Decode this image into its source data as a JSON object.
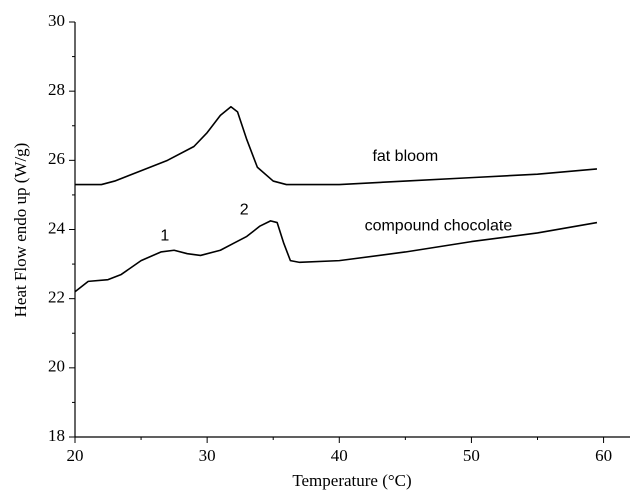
{
  "chart_data": {
    "type": "line",
    "xlabel": "Temperature (°C)",
    "ylabel": "Heat Flow endo up (W/g)",
    "xlim": [
      20,
      62
    ],
    "xticks": [
      20,
      30,
      40,
      50,
      60
    ],
    "ylim": [
      18,
      30
    ],
    "yticks": [
      18,
      20,
      22,
      24,
      26,
      28,
      30
    ],
    "series": [
      {
        "name": "fat bloom",
        "color": "#000000",
        "x": [
          20,
          22,
          23,
          25,
          27,
          29,
          30,
          31,
          31.8,
          32.3,
          33,
          33.8,
          35,
          36,
          40,
          45,
          50,
          55,
          59.5
        ],
        "values": [
          25.3,
          25.3,
          25.4,
          25.7,
          26.0,
          26.4,
          26.8,
          27.3,
          27.55,
          27.4,
          26.6,
          25.8,
          25.4,
          25.3,
          25.3,
          25.4,
          25.5,
          25.6,
          25.75
        ]
      },
      {
        "name": "compound chocolate",
        "color": "#000000",
        "x": [
          20,
          21,
          22.5,
          23.5,
          25,
          26.5,
          27.5,
          28.5,
          29.5,
          31,
          32,
          33,
          34,
          34.8,
          35.3,
          35.8,
          36.3,
          37,
          40,
          45,
          50,
          55,
          59.5
        ],
        "values": [
          22.2,
          22.5,
          22.55,
          22.7,
          23.1,
          23.35,
          23.4,
          23.3,
          23.25,
          23.4,
          23.6,
          23.8,
          24.1,
          24.25,
          24.2,
          23.6,
          23.1,
          23.05,
          23.1,
          23.35,
          23.65,
          23.9,
          24.2
        ]
      }
    ],
    "annotations": [
      {
        "text": "fat bloom",
        "x": 45,
        "y": 26.1
      },
      {
        "text": "compound chocolate",
        "x": 47.5,
        "y": 24.1
      },
      {
        "text": "1",
        "x": 26.8,
        "y": 23.8
      },
      {
        "text": "2",
        "x": 32.8,
        "y": 24.55
      }
    ]
  }
}
